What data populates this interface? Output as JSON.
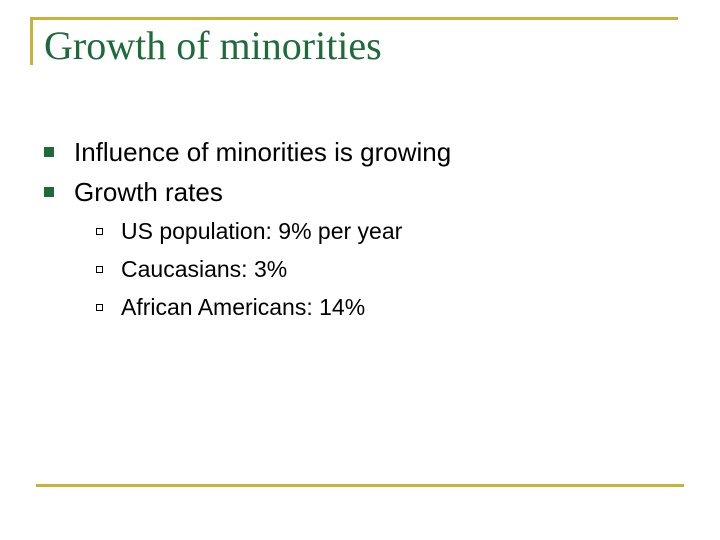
{
  "title": "Growth of minorities",
  "bullets": [
    {
      "text": "Influence of minorities is growing",
      "sub": []
    },
    {
      "text": "Growth rates",
      "sub": [
        "US population: 9% per year",
        "Caucasians: 3%",
        "African Americans: 14%"
      ]
    }
  ]
}
